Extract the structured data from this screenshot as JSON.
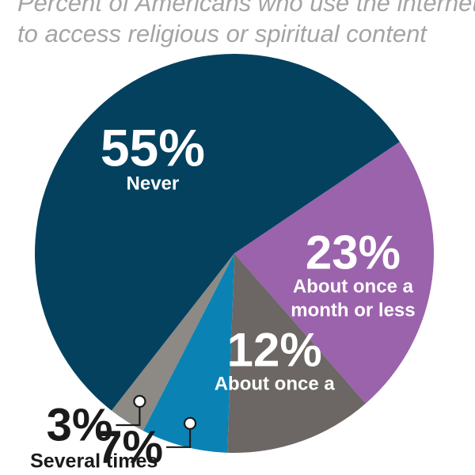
{
  "chart_data": {
    "type": "pie",
    "subtitle_lines": [
      "Percent of Americans who use the internet",
      "to access religious or spiritual content"
    ],
    "slices": [
      {
        "label_lines": [
          "About once a",
          "month or less"
        ],
        "value": 23,
        "value_label": "23%",
        "color": "#9b63ac"
      },
      {
        "label_lines": [
          "About once a"
        ],
        "value": 12,
        "value_label": "12%",
        "color": "#6c6765"
      },
      {
        "label_lines": [],
        "value": 7,
        "value_label": "7%",
        "color": "#0b82b4"
      },
      {
        "label_lines": [
          "Several times"
        ],
        "value": 3,
        "value_label": "3%",
        "color": "#8d8985"
      },
      {
        "label_lines": [
          "Never"
        ],
        "value": 55,
        "value_label": "55%",
        "color": "#03415f"
      }
    ],
    "colors": {
      "subtitle_text": "#a4a4a4",
      "callout_text": "#1a1a1a",
      "inside_text": "#ffffff"
    }
  }
}
